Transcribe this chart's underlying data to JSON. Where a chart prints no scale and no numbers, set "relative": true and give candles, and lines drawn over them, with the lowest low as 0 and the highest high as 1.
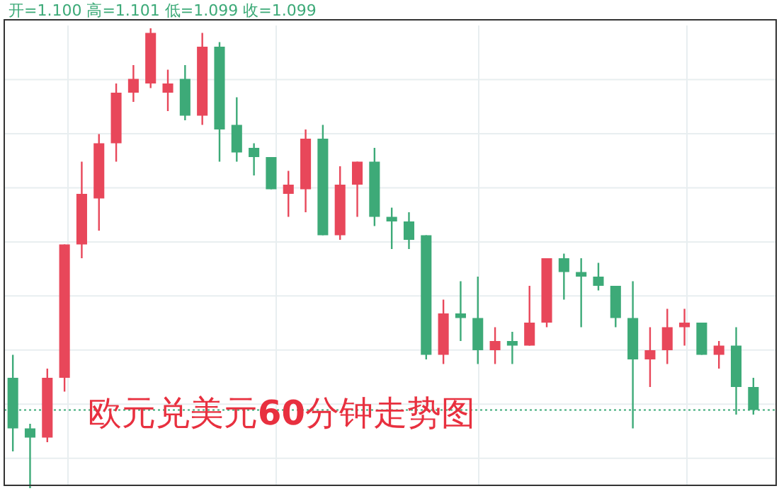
{
  "chart_data": {
    "type": "candlestick",
    "title": "欧元兑美元60分钟走势图",
    "subtitle": "开=1.100  高=1.101  低=1.099  收=1.099",
    "relative": true,
    "grid": true,
    "categories": [
      null,
      null,
      null,
      null,
      null,
      null,
      null,
      null,
      null,
      null,
      null,
      null,
      null,
      null,
      null,
      null,
      null,
      null,
      null,
      null,
      null,
      null,
      null,
      null,
      null,
      null,
      null,
      null,
      null,
      null,
      null,
      null,
      null,
      null,
      null,
      null,
      null,
      null,
      null,
      null,
      null,
      null,
      null,
      null
    ],
    "ohlc": [
      [
        0.24,
        0.29,
        0.08,
        0.13
      ],
      [
        0.13,
        0.14,
        0,
        0.11
      ],
      [
        0.11,
        0.26,
        0.1,
        0.24
      ],
      [
        0.24,
        0.53,
        0.21,
        0.53
      ],
      [
        0.53,
        0.71,
        0.5,
        0.64
      ],
      [
        0.63,
        0.77,
        0.56,
        0.75
      ],
      [
        0.75,
        0.88,
        0.71,
        0.86
      ],
      [
        0.86,
        0.92,
        0.84,
        0.89
      ],
      [
        0.88,
        1,
        0.87,
        0.99
      ],
      [
        0.86,
        0.91,
        0.82,
        0.88
      ],
      [
        0.89,
        0.92,
        0.8,
        0.81
      ],
      [
        0.81,
        0.99,
        0.79,
        0.96
      ],
      [
        0.96,
        0.97,
        0.71,
        0.78
      ],
      [
        0.79,
        0.85,
        0.71,
        0.73
      ],
      [
        0.74,
        0.75,
        0.68,
        0.72
      ],
      [
        0.72,
        0.72,
        0.65,
        0.65
      ],
      [
        0.64,
        0.69,
        0.59,
        0.66
      ],
      [
        0.65,
        0.78,
        0.6,
        0.76
      ],
      [
        0.76,
        0.79,
        0.55,
        0.55
      ],
      [
        0.55,
        0.7,
        0.54,
        0.66
      ],
      [
        0.66,
        0.71,
        0.59,
        0.71
      ],
      [
        0.71,
        0.74,
        0.57,
        0.59
      ],
      [
        0.59,
        0.61,
        0.52,
        0.58
      ],
      [
        0.58,
        0.6,
        0.52,
        0.54
      ],
      [
        0.55,
        0.55,
        0.28,
        0.29
      ],
      [
        0.29,
        0.41,
        0.27,
        0.38
      ],
      [
        0.38,
        0.45,
        0.32,
        0.37
      ],
      [
        0.37,
        0.46,
        0.27,
        0.3
      ],
      [
        0.3,
        0.35,
        0.27,
        0.32
      ],
      [
        0.32,
        0.34,
        0.27,
        0.31
      ],
      [
        0.31,
        0.44,
        0.31,
        0.36
      ],
      [
        0.36,
        0.5,
        0.35,
        0.5
      ],
      [
        0.5,
        0.51,
        0.41,
        0.47
      ],
      [
        0.47,
        0.5,
        0.35,
        0.46
      ],
      [
        0.46,
        0.49,
        0.43,
        0.44
      ],
      [
        0.44,
        0.44,
        0.35,
        0.37
      ],
      [
        0.37,
        0.45,
        0.13,
        0.28
      ],
      [
        0.28,
        0.35,
        0.22,
        0.3
      ],
      [
        0.3,
        0.39,
        0.27,
        0.35
      ],
      [
        0.35,
        0.39,
        0.31,
        0.36
      ],
      [
        0.36,
        0.36,
        0.29,
        0.29
      ],
      [
        0.29,
        0.32,
        0.26,
        0.31
      ],
      [
        0.31,
        0.35,
        0.16,
        0.22
      ],
      [
        0.22,
        0.24,
        0.16,
        0.17
      ]
    ],
    "colors": [
      "#3daa78",
      "#3daa78",
      "#e8475a",
      "#e8475a",
      "#e8475a",
      "#e8475a",
      "#e8475a",
      "#e8475a",
      "#e8475a",
      "#e8475a",
      "#3daa78",
      "#e8475a",
      "#3daa78",
      "#3daa78",
      "#3daa78",
      "#3daa78",
      "#e8475a",
      "#e8475a",
      "#3daa78",
      "#e8475a",
      "#e8475a",
      "#3daa78",
      "#3daa78",
      "#3daa78",
      "#3daa78",
      "#e8475a",
      "#3daa78",
      "#3daa78",
      "#e8475a",
      "#3daa78",
      "#e8475a",
      "#e8475a",
      "#3daa78",
      "#3daa78",
      "#3daa78",
      "#3daa78",
      "#3daa78",
      "#e8475a",
      "#e8475a",
      "#e8475a",
      "#3daa78",
      "#e8475a",
      "#3daa78",
      "#3daa78"
    ],
    "ref_lines": [
      {
        "axis": "y",
        "value": 0.17,
        "color": "#3daa78",
        "line_style": "dotted"
      }
    ]
  }
}
